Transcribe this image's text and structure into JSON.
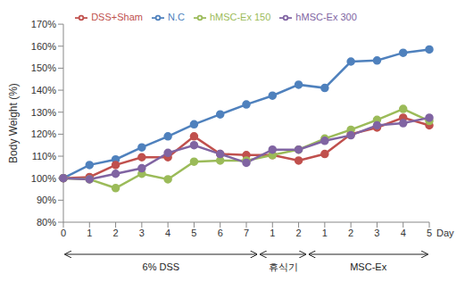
{
  "chart_data": {
    "type": "line",
    "x_label": "Day",
    "y_label": "Body Weight (%)",
    "categories": [
      "0",
      "1",
      "2",
      "3",
      "4",
      "5",
      "6",
      "7",
      "1",
      "2",
      "1",
      "2",
      "3",
      "4",
      "5"
    ],
    "series": [
      {
        "name": "N.C",
        "color": "#4f81bd",
        "marker": "circle",
        "values": [
          100,
          106,
          108.5,
          114,
          119,
          124.5,
          129,
          133.5,
          137.5,
          142.5,
          141,
          153,
          153.5,
          157,
          158.5
        ]
      },
      {
        "name": "DSS+Sham",
        "color": "#c0504d",
        "marker": "circle",
        "values": [
          100,
          100.5,
          106,
          109.5,
          109.5,
          119,
          111,
          110.5,
          110.5,
          108,
          111,
          120,
          123,
          127.5,
          124
        ]
      },
      {
        "name": "hMSC-Ex 150",
        "color": "#9bbb59",
        "marker": "circle",
        "values": [
          100,
          99.5,
          95.5,
          102,
          99.5,
          107.5,
          108,
          108,
          110.5,
          113,
          118,
          122,
          126.5,
          131.5,
          126
        ]
      },
      {
        "name": "hMSC-Ex 300",
        "color": "#8064a2",
        "marker": "circle",
        "values": [
          100,
          99.5,
          102,
          104.5,
          111.5,
          115,
          111,
          107,
          113,
          113,
          117,
          119.5,
          124,
          125,
          127.5
        ]
      }
    ],
    "ylim": [
      80,
      170
    ],
    "yticks": [
      {
        "value": 80,
        "label": "80%"
      },
      {
        "value": 90,
        "label": "90%"
      },
      {
        "value": 100,
        "label": "100%"
      },
      {
        "value": 110,
        "label": "110%"
      },
      {
        "value": 120,
        "label": "120%"
      },
      {
        "value": 130,
        "label": "130%"
      },
      {
        "value": 140,
        "label": "140%"
      },
      {
        "value": 150,
        "label": "150%"
      },
      {
        "value": 160,
        "label": "160%"
      },
      {
        "value": 170,
        "label": "170%"
      }
    ],
    "annotations": [
      {
        "text": "6% DSS",
        "from": 0,
        "to": 7
      },
      {
        "text": "휴식기",
        "from": 8,
        "to": 9
      },
      {
        "text": "MSC-Ex",
        "from": 10,
        "to": 14
      }
    ],
    "grid": false,
    "legend": "top"
  }
}
